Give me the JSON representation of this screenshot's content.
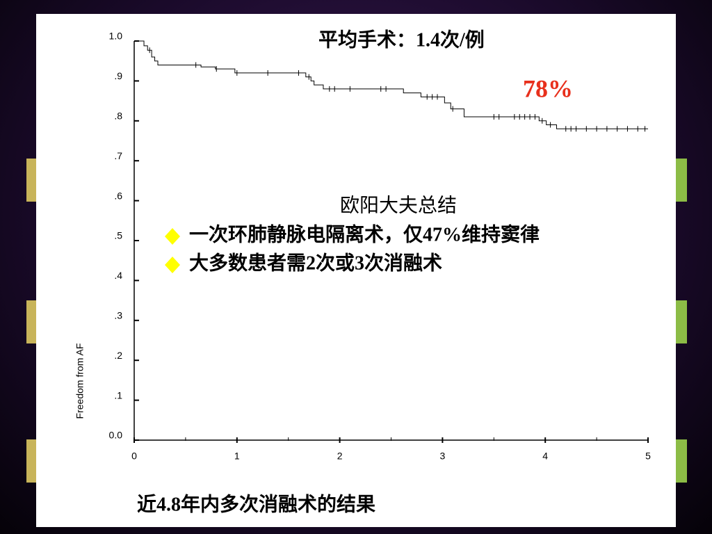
{
  "chart_data": {
    "type": "line",
    "ylabel": "Freedom from AF",
    "xlim": [
      0,
      5
    ],
    "xticks": [
      0,
      1,
      2,
      3,
      4,
      5
    ],
    "xminorticks": [
      0.5,
      1.5,
      2.5,
      3.5,
      4.5
    ],
    "ylim": [
      0,
      1
    ],
    "yticks": [
      {
        "value": 0,
        "label": "0.0"
      },
      {
        "value": 0.1,
        "label": ".1"
      },
      {
        "value": 0.2,
        "label": ".2"
      },
      {
        "value": 0.3,
        "label": ".3"
      },
      {
        "value": 0.4,
        "label": ".4"
      },
      {
        "value": 0.5,
        "label": ".5"
      },
      {
        "value": 0.6,
        "label": ".6"
      },
      {
        "value": 0.7,
        "label": ".7"
      },
      {
        "value": 0.8,
        "label": ".8"
      },
      {
        "value": 0.9,
        "label": ".9"
      },
      {
        "value": 1,
        "label": "1.0"
      }
    ],
    "color": "#000000",
    "x": [
      0,
      0.095,
      0.13,
      0.17,
      0.2,
      0.23,
      0.65,
      0.79,
      0.98,
      1.67,
      1.72,
      1.75,
      1.84,
      2.62,
      2.79,
      3.02,
      3.08,
      3.21,
      3.94,
      4.01,
      4.11,
      5
    ],
    "values": [
      1,
      0.988,
      0.977,
      0.96,
      0.95,
      0.94,
      0.935,
      0.93,
      0.92,
      0.91,
      0.9,
      0.89,
      0.88,
      0.87,
      0.86,
      0.845,
      0.83,
      0.81,
      0.8,
      0.79,
      0.78,
      0.78
    ],
    "censored": {
      "x": [
        0.15,
        0.6,
        0.8,
        1.0,
        1.3,
        1.6,
        1.7,
        1.9,
        1.95,
        2.1,
        2.4,
        2.45,
        2.85,
        2.9,
        2.95,
        3.1,
        3.5,
        3.55,
        3.7,
        3.75,
        3.8,
        3.85,
        3.9,
        3.97,
        4.05,
        4.2,
        4.25,
        4.3,
        4.4,
        4.5,
        4.6,
        4.7,
        4.8,
        4.9,
        4.97
      ],
      "values": [
        0.977,
        0.94,
        0.93,
        0.92,
        0.92,
        0.92,
        0.91,
        0.88,
        0.88,
        0.88,
        0.88,
        0.88,
        0.86,
        0.86,
        0.86,
        0.83,
        0.81,
        0.81,
        0.81,
        0.81,
        0.81,
        0.81,
        0.81,
        0.8,
        0.79,
        0.78,
        0.78,
        0.78,
        0.78,
        0.78,
        0.78,
        0.78,
        0.78,
        0.78,
        0.78
      ]
    },
    "annotations": [
      "平均手术：1.4次/例",
      "78%"
    ],
    "summary": {
      "title": "欧阳大夫总结",
      "items": [
        "一次环肺静脉电隔离术，仅47%维持窦律",
        "大多数患者需2次或3次消融术"
      ]
    },
    "caption": "近4.8年内多次消融术的结果"
  }
}
